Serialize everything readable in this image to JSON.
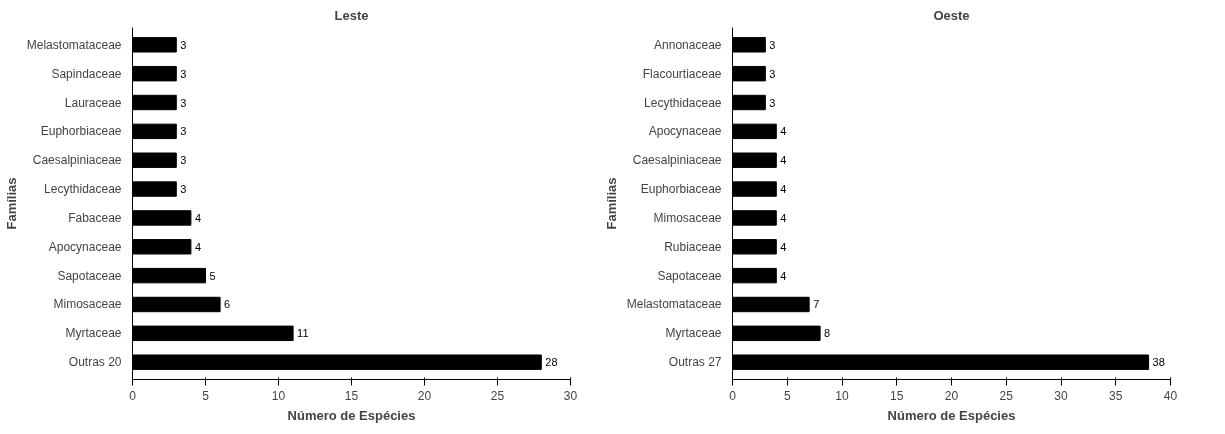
{
  "chart_data": [
    {
      "type": "bar",
      "orientation": "horizontal",
      "title": "Leste",
      "xlabel": "Número de Espécies",
      "ylabel": "Famílias",
      "categories": [
        "Melastomataceae",
        "Sapindaceae",
        "Lauraceae",
        "Euphorbiaceae",
        "Caesalpiniaceae",
        "Lecythidaceae",
        "Fabaceae",
        "Apocynaceae",
        "Sapotaceae",
        "Mimosaceae",
        "Myrtaceae",
        "Outras 20"
      ],
      "values": [
        3,
        3,
        3,
        3,
        3,
        3,
        4,
        4,
        5,
        6,
        11,
        28
      ],
      "color": "#000000",
      "xlim": [
        0,
        30
      ],
      "xticks": [
        0,
        5,
        10,
        15,
        20,
        25,
        30
      ],
      "data_labels": true
    },
    {
      "type": "bar",
      "orientation": "horizontal",
      "title": "Oeste",
      "xlabel": "Número de Espécies",
      "ylabel": "Famílias",
      "categories": [
        "Annonaceae",
        "Flacourtiaceae",
        "Lecythidaceae",
        "Apocynaceae",
        "Caesalpiniaceae",
        "Euphorbiaceae",
        "Mimosaceae",
        "Rubiaceae",
        "Sapotaceae",
        "Melastomataceae",
        "Myrtaceae",
        "Outras 27"
      ],
      "values": [
        3,
        3,
        3,
        4,
        4,
        4,
        4,
        4,
        4,
        7,
        8,
        38
      ],
      "color": "#000000",
      "xlim": [
        0,
        40
      ],
      "xticks": [
        0,
        5,
        10,
        15,
        20,
        25,
        30,
        35,
        40
      ],
      "data_labels": true
    }
  ]
}
